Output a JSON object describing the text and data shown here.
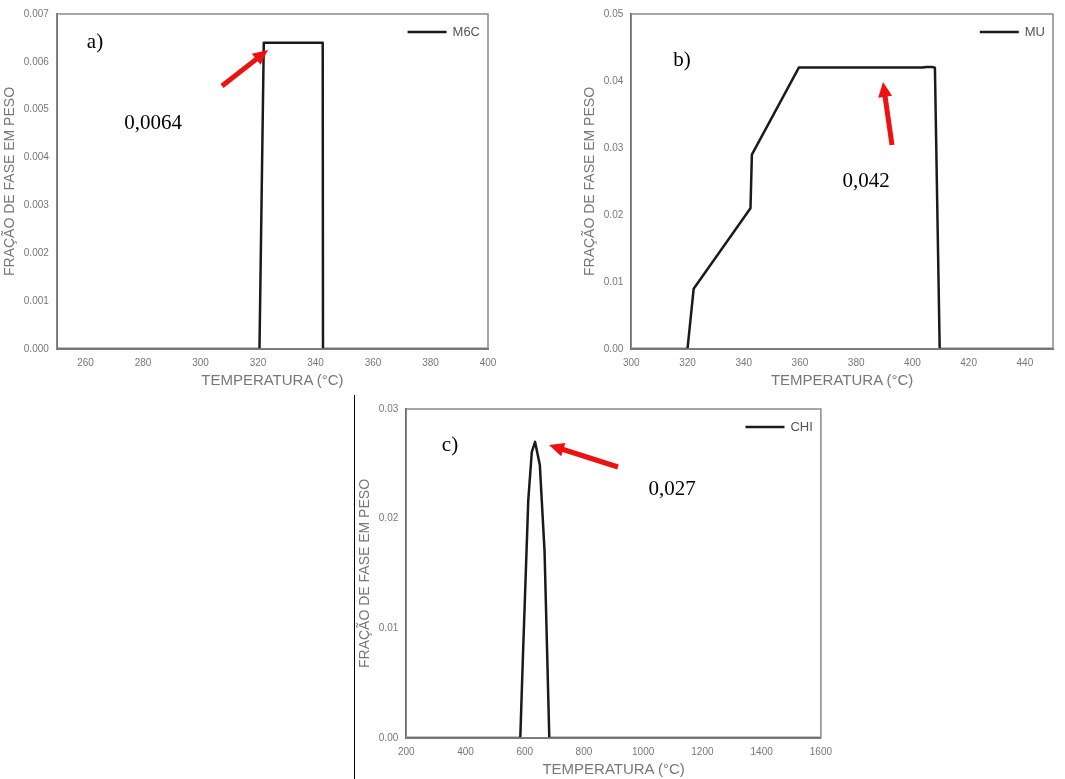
{
  "chart_data": [
    {
      "type": "line",
      "xlabel": "TEMPERATURA (°C)",
      "ylabel": "FRAÇÃO DE FASE EM PESO",
      "xlim": [
        250,
        400
      ],
      "xticks": [
        260,
        280,
        300,
        320,
        340,
        360,
        380,
        400
      ],
      "ylim": [
        0,
        0.007
      ],
      "yticks": [
        {
          "value": 0,
          "label": "0.000"
        },
        {
          "value": 0.001,
          "label": "0.001"
        },
        {
          "value": 0.002,
          "label": "0.002"
        },
        {
          "value": 0.003,
          "label": "0.003"
        },
        {
          "value": 0.004,
          "label": "0.004"
        },
        {
          "value": 0.005,
          "label": "0.005"
        },
        {
          "value": 0.006,
          "label": "0.006"
        },
        {
          "value": 0.007,
          "label": "0.007"
        }
      ],
      "legend": "top right",
      "series": [
        {
          "name": "M6C",
          "color": "#1a1a1a",
          "x": [
            250,
            320.5,
            322,
            342.5,
            342.6,
            400
          ],
          "values": [
            0,
            0,
            0.0064,
            0.0064,
            0,
            0
          ]
        }
      ],
      "annotations": [
        "a)",
        "0,0064"
      ]
    },
    {
      "type": "line",
      "xlabel": "TEMPERATURA (°C)",
      "ylabel": "FRAÇÃO DE FASE EM PESO",
      "xlim": [
        300,
        450
      ],
      "xticks": [
        300,
        320,
        340,
        360,
        380,
        400,
        420,
        440
      ],
      "ylim": [
        0,
        0.05
      ],
      "yticks": [
        {
          "value": 0,
          "label": "0.00"
        },
        {
          "value": 0.01,
          "label": "0.01"
        },
        {
          "value": 0.02,
          "label": "0.02"
        },
        {
          "value": 0.03,
          "label": "0.03"
        },
        {
          "value": 0.04,
          "label": "0.04"
        },
        {
          "value": 0.05,
          "label": "0.05"
        }
      ],
      "legend": "top right",
      "series": [
        {
          "name": "MU",
          "color": "#1a1a1a",
          "x": [
            300,
            320,
            322.2,
            342.4,
            342.9,
            359.6,
            403.6,
            405,
            407,
            408,
            409.7,
            450
          ],
          "values": [
            0,
            0,
            0.009,
            0.021,
            0.029,
            0.042,
            0.042,
            0.0421,
            0.0421,
            0.042,
            0,
            0
          ]
        }
      ],
      "annotations": [
        "b)",
        "0,042"
      ]
    },
    {
      "type": "line",
      "xlabel": "TEMPERATURA (°C)",
      "ylabel": "FRAÇÃO DE FASE EM PESO",
      "xlim": [
        200,
        1600
      ],
      "xticks": [
        200,
        400,
        600,
        800,
        1000,
        1200,
        1400,
        1600
      ],
      "ylim": [
        0,
        0.03
      ],
      "yticks": [
        {
          "value": 0,
          "label": "0.00"
        },
        {
          "value": 0.01,
          "label": "0.01"
        },
        {
          "value": 0.02,
          "label": "0.02"
        },
        {
          "value": 0.03,
          "label": "0.03"
        }
      ],
      "legend": "top right",
      "series": [
        {
          "name": "CHI",
          "color": "#1a1a1a",
          "x": [
            200,
            585,
            594,
            612,
            624,
            635,
            651,
            667,
            683,
            1600
          ],
          "values": [
            0,
            0,
            0.0075,
            0.0217,
            0.0261,
            0.027,
            0.0249,
            0.017,
            0,
            0
          ]
        }
      ],
      "annotations": [
        "c)",
        "0,027"
      ]
    }
  ]
}
